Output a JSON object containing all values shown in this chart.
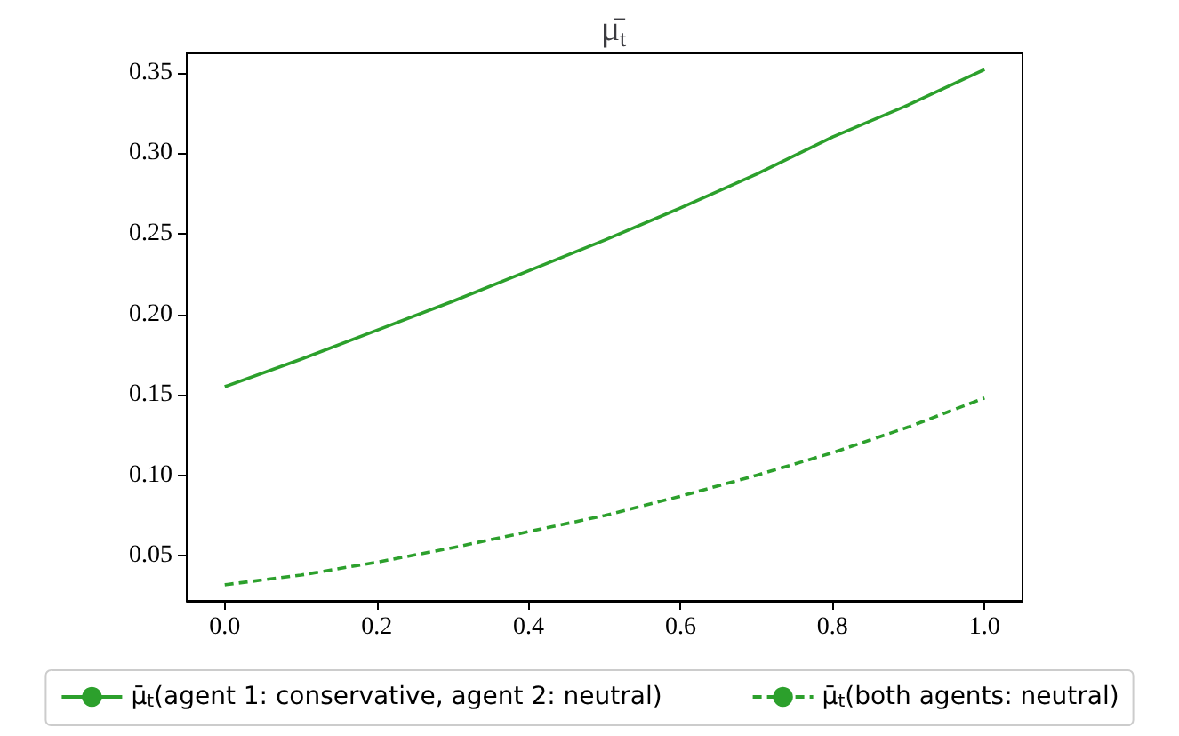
{
  "chart_data": {
    "type": "line",
    "title": "μ̄$_{t}$",
    "x": [
      0,
      0.1,
      0.2,
      0.3,
      0.4,
      0.5,
      0.6,
      0.7,
      0.8,
      0.9,
      1.0
    ],
    "series": [
      {
        "name": "μ̄$_{t}$(agent 1: conservative, agent 2: neutral)",
        "color": "#2ca02c",
        "line_style": "solid",
        "values": [
          0.155,
          0.172,
          0.19,
          0.208,
          0.227,
          0.246,
          0.266,
          0.287,
          0.31,
          0.33,
          0.352
        ]
      },
      {
        "name": "μ̄$_{t}$(both agents: neutral)",
        "color": "#2ca02c",
        "line_style": "dashed",
        "values": [
          0.032,
          0.038,
          0.046,
          0.055,
          0.065,
          0.075,
          0.087,
          0.1,
          0.114,
          0.13,
          0.148
        ]
      }
    ],
    "xlim": [
      -0.05,
      1.05
    ],
    "xticks": [
      {
        "value": 0,
        "label": "0.0"
      },
      {
        "value": 0.2,
        "label": "0.2"
      },
      {
        "value": 0.4,
        "label": "0.4"
      },
      {
        "value": 0.6,
        "label": "0.6"
      },
      {
        "value": 0.8,
        "label": "0.8"
      },
      {
        "value": 1,
        "label": "1.0"
      }
    ],
    "ylim": [
      0.022,
      0.362
    ],
    "yticks": [
      0.05,
      {
        "value": 0.1,
        "label": "0.10"
      },
      0.15,
      {
        "value": 0.2,
        "label": "0.20"
      },
      0.25,
      {
        "value": 0.3,
        "label": "0.30"
      },
      0.35
    ],
    "grid": false,
    "legend": "bottom",
    "marker": "none"
  }
}
